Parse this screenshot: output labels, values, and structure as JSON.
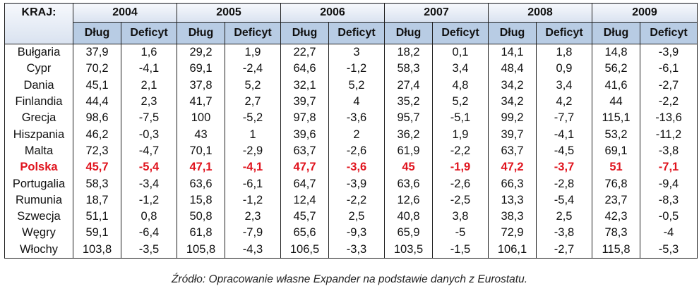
{
  "header": {
    "country_label": "KRAJ:",
    "years": [
      "2004",
      "2005",
      "2006",
      "2007",
      "2008",
      "2009"
    ],
    "debt_label": "Dług",
    "deficit_label": "Deficyt"
  },
  "rows": [
    {
      "country": "Bułgaria",
      "values": [
        "37,9",
        "1,6",
        "29,2",
        "1,9",
        "22,7",
        "3",
        "18,2",
        "0,1",
        "14,1",
        "1,8",
        "14,8",
        "-3,9"
      ],
      "highlight": false
    },
    {
      "country": "Cypr",
      "values": [
        "70,2",
        "-4,1",
        "69,1",
        "-2,4",
        "64,6",
        "-1,2",
        "58,3",
        "3,4",
        "48,4",
        "0,9",
        "56,2",
        "-6,1"
      ],
      "highlight": false
    },
    {
      "country": "Dania",
      "values": [
        "45,1",
        "2,1",
        "37,8",
        "5,2",
        "32,1",
        "5,2",
        "27,4",
        "4,8",
        "34,2",
        "3,4",
        "41,6",
        "-2,7"
      ],
      "highlight": false
    },
    {
      "country": "Finlandia",
      "values": [
        "44,4",
        "2,3",
        "41,7",
        "2,7",
        "39,7",
        "4",
        "35,2",
        "5,2",
        "34,2",
        "4,2",
        "44",
        "-2,2"
      ],
      "highlight": false
    },
    {
      "country": "Grecja",
      "values": [
        "98,6",
        "-7,5",
        "100",
        "-5,2",
        "97,8",
        "-3,6",
        "95,7",
        "-5,1",
        "99,2",
        "-7,7",
        "115,1",
        "-13,6"
      ],
      "highlight": false
    },
    {
      "country": "Hiszpania",
      "values": [
        "46,2",
        "-0,3",
        "43",
        "1",
        "39,6",
        "2",
        "36,2",
        "1,9",
        "39,7",
        "-4,1",
        "53,2",
        "-11,2"
      ],
      "highlight": false
    },
    {
      "country": "Malta",
      "values": [
        "72,3",
        "-4,7",
        "70,1",
        "-2,9",
        "63,7",
        "-2,6",
        "61,9",
        "-2,2",
        "63,7",
        "-4,5",
        "69,1",
        "-3,8"
      ],
      "highlight": false
    },
    {
      "country": "Polska",
      "values": [
        "45,7",
        "-5,4",
        "47,1",
        "-4,1",
        "47,7",
        "-3,6",
        "45",
        "-1,9",
        "47,2",
        "-3,7",
        "51",
        "-7,1"
      ],
      "highlight": true
    },
    {
      "country": "Portugalia",
      "values": [
        "58,3",
        "-3,4",
        "63,6",
        "-6,1",
        "64,7",
        "-3,9",
        "63,6",
        "-2,6",
        "66,3",
        "-2,8",
        "76,8",
        "-9,4"
      ],
      "highlight": false
    },
    {
      "country": "Rumunia",
      "values": [
        "18,7",
        "-1,2",
        "15,8",
        "-1,2",
        "12,4",
        "-2,2",
        "12,6",
        "-2,5",
        "13,3",
        "-5,4",
        "23,7",
        "-8,3"
      ],
      "highlight": false
    },
    {
      "country": "Szwecja",
      "values": [
        "51,1",
        "0,8",
        "50,8",
        "2,3",
        "45,7",
        "2,5",
        "40,8",
        "3,8",
        "38,3",
        "2,5",
        "42,3",
        "-0,5"
      ],
      "highlight": false
    },
    {
      "country": "Węgry",
      "values": [
        "59,1",
        "-6,4",
        "61,8",
        "-7,9",
        "65,6",
        "-9,3",
        "65,9",
        "-5",
        "72,9",
        "-3,8",
        "78,3",
        "-4"
      ],
      "highlight": false
    },
    {
      "country": "Włochy",
      "values": [
        "103,8",
        "-3,5",
        "105,8",
        "-4,3",
        "106,5",
        "-3,3",
        "103,5",
        "-1,5",
        "106,1",
        "-2,7",
        "115,8",
        "-5,3"
      ],
      "highlight": false
    }
  ],
  "source": "Źródło: Opracowanie własne Expander na podstawie danych z Eurostatu.",
  "colors": {
    "highlight_text": "#e0141e",
    "subheader_bg": "#b8cce4"
  }
}
